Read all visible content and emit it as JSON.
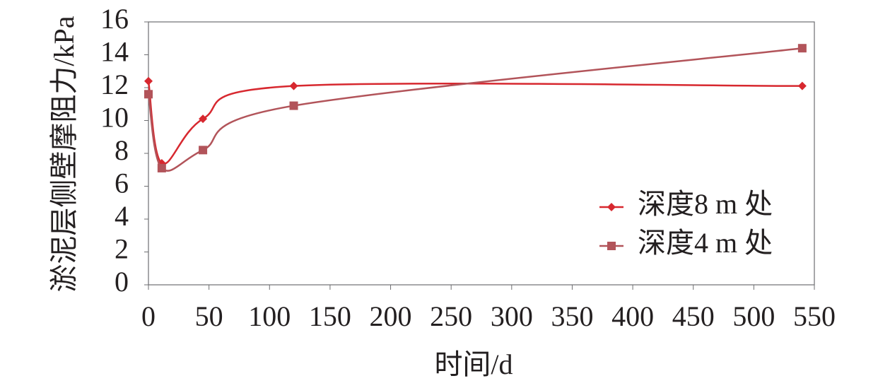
{
  "chart_data": {
    "type": "line",
    "x_label": "时间/d",
    "y_label": "淤泥层侧壁摩阻力/kPa",
    "x": [
      0,
      11,
      45,
      120,
      540
    ],
    "series": [
      {
        "name": "深度8 m 处",
        "color": "#d7282f",
        "marker": "diamond",
        "values": [
          12.4,
          7.4,
          10.1,
          12.1,
          12.1
        ]
      },
      {
        "name": "深度4 m 处",
        "color": "#b2545a",
        "marker": "square",
        "values": [
          11.6,
          7.1,
          8.2,
          10.9,
          14.4
        ]
      }
    ],
    "xlim": [
      0,
      550
    ],
    "xticks": [
      0,
      50,
      100,
      150,
      200,
      250,
      300,
      350,
      400,
      450,
      500,
      550
    ],
    "ylim": [
      0,
      16
    ],
    "yticks": [
      0,
      2,
      4,
      6,
      8,
      10,
      12,
      14,
      16
    ],
    "grid": false,
    "smooth": true
  }
}
